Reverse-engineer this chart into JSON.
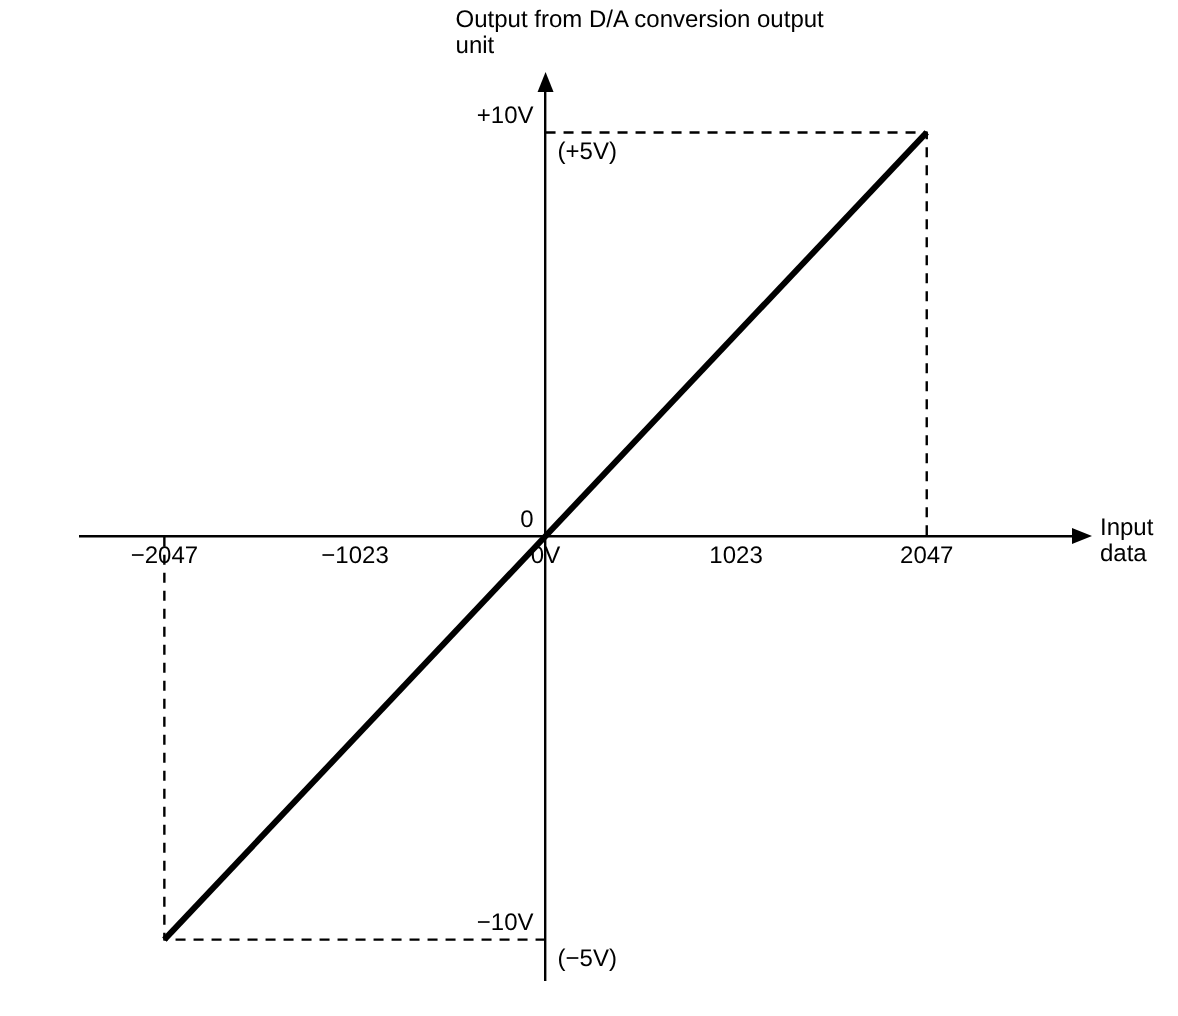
{
  "chart_data": {
    "type": "line",
    "xlabel": "Input data",
    "ylabel": "Output from D/A conversion output unit",
    "xlim": [
      -2500,
      2870
    ],
    "ylim": [
      -11,
      11.2
    ],
    "xticks": [
      {
        "value": -2047,
        "label": "−2047"
      },
      {
        "value": -1023,
        "label": "−1023"
      },
      {
        "value": 0,
        "label": "0V"
      },
      {
        "value": 1023,
        "label": "1023"
      },
      {
        "value": 2047,
        "label": "2047"
      }
    ],
    "yticks": [
      {
        "value": -10,
        "label": "−10V"
      },
      {
        "value": 0,
        "label": "0"
      },
      {
        "value": 10,
        "label": "+10V"
      }
    ],
    "annotations": [
      {
        "text": "(+5V)",
        "x": 0,
        "y": 10
      },
      {
        "text": "(−5V)",
        "x": 0,
        "y": -10
      }
    ],
    "grid": false,
    "legend": false,
    "marker": "none",
    "series": [
      {
        "color": "#000000",
        "x": [
          -2047,
          2047
        ],
        "values": [
          -10,
          10
        ],
        "line_style": "solid"
      },
      {
        "color": "#000000",
        "x": [
          0,
          2047,
          2047
        ],
        "values": [
          10,
          10,
          0
        ],
        "line_style": "dashed"
      },
      {
        "color": "#000000",
        "x": [
          0,
          -2047,
          -2047
        ],
        "values": [
          -10,
          -10,
          0
        ],
        "line_style": "dashed"
      }
    ]
  }
}
